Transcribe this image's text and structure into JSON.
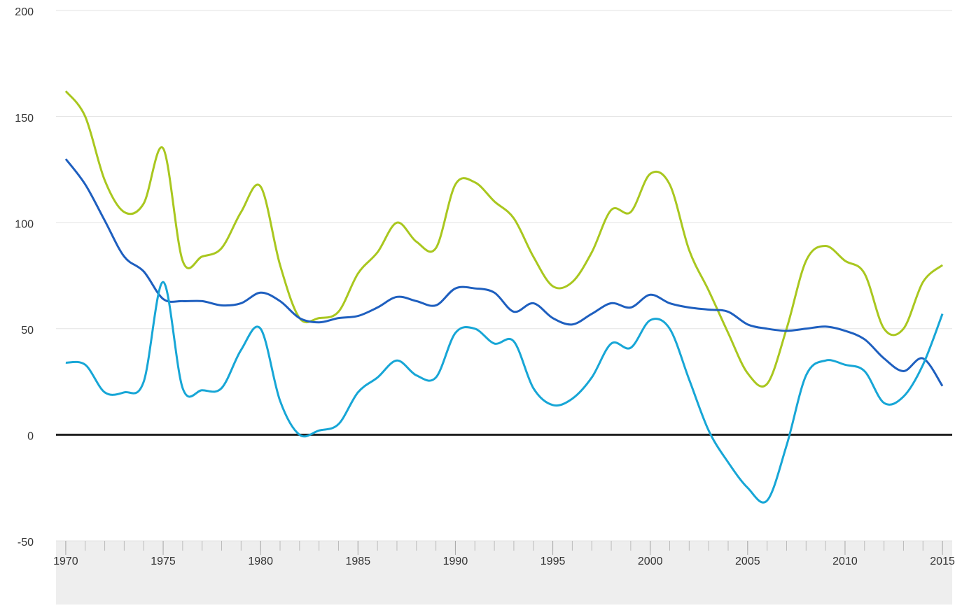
{
  "chart_data": {
    "type": "line",
    "x": [
      1970,
      1971,
      1972,
      1973,
      1974,
      1975,
      1976,
      1977,
      1978,
      1979,
      1980,
      1981,
      1982,
      1983,
      1984,
      1985,
      1986,
      1987,
      1988,
      1989,
      1990,
      1991,
      1992,
      1993,
      1994,
      1995,
      1996,
      1997,
      1998,
      1999,
      2000,
      2001,
      2002,
      2003,
      2004,
      2005,
      2006,
      2007,
      2008,
      2009,
      2010,
      2011,
      2012,
      2013,
      2014,
      2015
    ],
    "series": [
      {
        "color": "#a9c71f",
        "values": [
          162,
          150,
          120,
          105,
          109,
          135,
          82,
          84,
          88,
          105,
          117,
          80,
          55,
          55,
          58,
          76,
          86,
          100,
          91,
          88,
          118,
          119,
          110,
          102,
          84,
          70,
          72,
          86,
          106,
          105,
          123,
          118,
          87,
          68,
          48,
          29,
          24,
          50,
          82,
          89,
          82,
          76,
          50,
          50,
          72,
          80
        ]
      },
      {
        "color": "#1e5fbf",
        "values": [
          130,
          118,
          101,
          84,
          77,
          64,
          63,
          63,
          61,
          62,
          67,
          63,
          55,
          53,
          55,
          56,
          60,
          65,
          63,
          61,
          69,
          69,
          67,
          58,
          62,
          55,
          52,
          57,
          62,
          60,
          66,
          62,
          60,
          59,
          58,
          52,
          50,
          49,
          50,
          51,
          49,
          45,
          36,
          30,
          36,
          23
        ]
      },
      {
        "color": "#17a6d6",
        "values": [
          34,
          33,
          20,
          20,
          25,
          72,
          22,
          21,
          22,
          40,
          50,
          16,
          0,
          2,
          5,
          20,
          27,
          35,
          28,
          27,
          48,
          50,
          43,
          44,
          22,
          14,
          17,
          27,
          43,
          41,
          54,
          50,
          26,
          2,
          -13,
          -25,
          -31,
          -5,
          28,
          35,
          33,
          30,
          15,
          18,
          33,
          57
        ]
      }
    ],
    "xlim": [
      1969.5,
      2015.5
    ],
    "xticks": [
      1970,
      1975,
      1980,
      1985,
      1990,
      1995,
      2000,
      2005,
      2010,
      2015
    ],
    "ylim": [
      -50,
      200
    ],
    "yticks": [
      -50,
      0,
      50,
      100,
      150,
      200
    ],
    "grid": true
  }
}
